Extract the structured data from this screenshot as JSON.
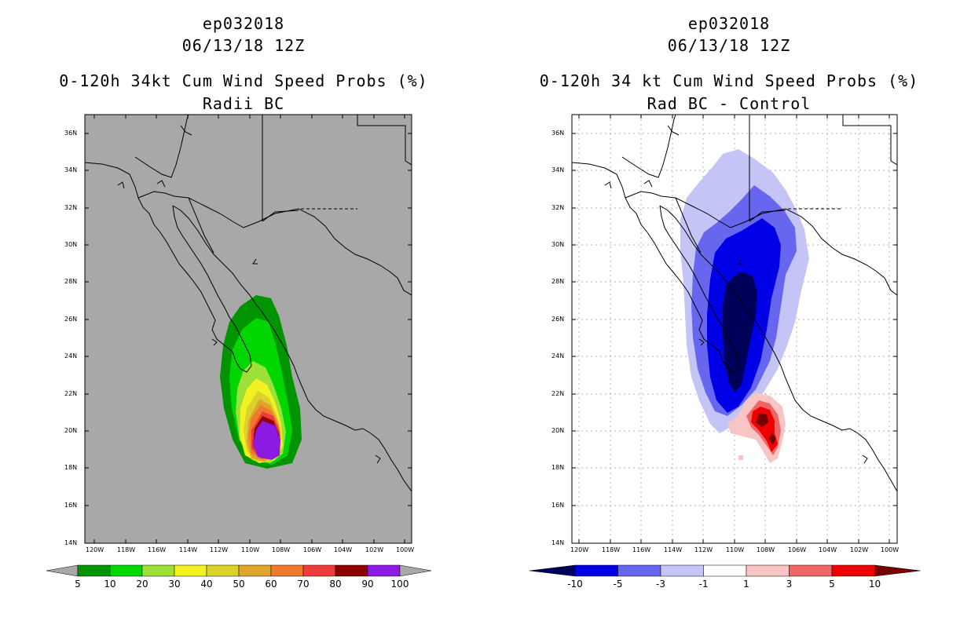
{
  "left_panel": {
    "storm_id": "ep032018",
    "datetime": "06/13/18 12Z",
    "title": "0-120h 34kt Cum Wind Speed Probs (%)",
    "subtitle": "Radii BC",
    "colorbar_labels": [
      "5",
      "10",
      "20",
      "30",
      "40",
      "50",
      "60",
      "70",
      "80",
      "90",
      "100"
    ],
    "colorbar_colors": [
      "#009400",
      "#00d600",
      "#9ee03a",
      "#f2f222",
      "#dcd22c",
      "#dfa42c",
      "#f07a2c",
      "#ee3b3b",
      "#8c0000",
      "#8c1ae0"
    ]
  },
  "right_panel": {
    "storm_id": "ep032018",
    "datetime": "06/13/18 12Z",
    "title": "0-120h 34 kt Cum Wind Speed Probs (%)",
    "subtitle": "Rad BC - Control",
    "colorbar_labels": [
      "-10",
      "-5",
      "-3",
      "-1",
      "1",
      "3",
      "5",
      "10"
    ],
    "colorbar_colors": [
      "#00005a",
      "#0000e6",
      "#6666ee",
      "#c4c4f6",
      "#ffffff",
      "#f8c4c4",
      "#ee6666",
      "#ee0000",
      "#780000"
    ]
  },
  "lat_labels": [
    "36N",
    "34N",
    "32N",
    "30N",
    "28N",
    "26N",
    "24N",
    "22N",
    "20N",
    "18N",
    "16N",
    "14N"
  ],
  "lon_labels": [
    "120W",
    "118W",
    "116W",
    "114W",
    "112W",
    "110W",
    "108W",
    "106W",
    "104W",
    "102W",
    "100W"
  ]
}
